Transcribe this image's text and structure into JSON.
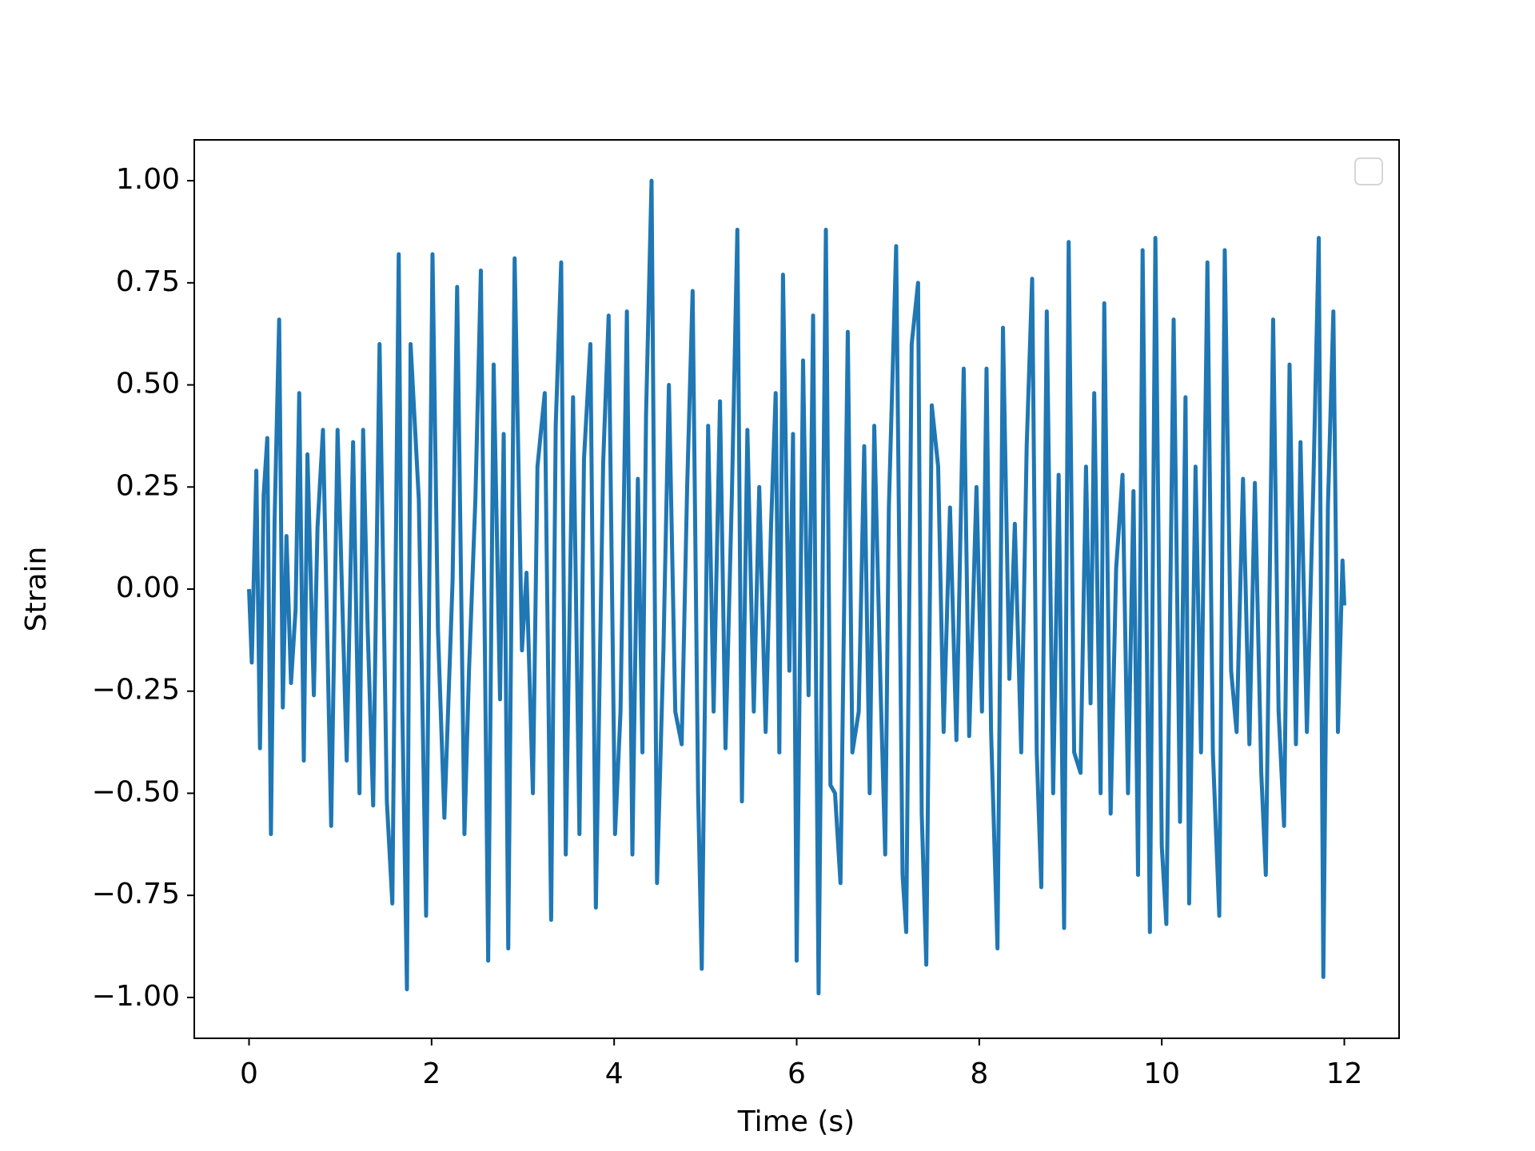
{
  "chart_data": {
    "type": "line",
    "xlabel": "Time (s)",
    "ylabel": "Strain",
    "xlim": [
      -0.6,
      12.6
    ],
    "ylim": [
      -1.1,
      1.1
    ],
    "xticks": [
      0,
      2,
      4,
      6,
      8,
      10,
      12
    ],
    "yticks": [
      {
        "value": -1.0,
        "label": "−1.00"
      },
      {
        "value": -0.75,
        "label": "−0.75"
      },
      {
        "value": -0.5,
        "label": "−0.50"
      },
      {
        "value": -0.25,
        "label": "−0.25"
      },
      {
        "value": 0.0,
        "label": "0.00"
      },
      {
        "value": 0.25,
        "label": "0.25"
      },
      {
        "value": 0.5,
        "label": "0.50"
      },
      {
        "value": 0.75,
        "label": "0.75"
      },
      {
        "value": 1.0,
        "label": "1.00"
      }
    ],
    "legend": "upper right",
    "color": "#1f77b4",
    "x": [
      0,
      0.03,
      0.08,
      0.12,
      0.16,
      0.2,
      0.24,
      0.28,
      0.33,
      0.37,
      0.41,
      0.46,
      0.51,
      0.55,
      0.6,
      0.64,
      0.71,
      0.75,
      0.81,
      0.9,
      0.97,
      1.07,
      1.14,
      1.21,
      1.25,
      1.3,
      1.36,
      1.43,
      1.51,
      1.57,
      1.64,
      1.68,
      1.73,
      1.77,
      1.86,
      1.94,
      2.01,
      2.07,
      2.14,
      2.23,
      2.28,
      2.36,
      2.41,
      2.48,
      2.54,
      2.62,
      2.68,
      2.75,
      2.79,
      2.84,
      2.91,
      2.99,
      3.04,
      3.11,
      3.16,
      3.24,
      3.31,
      3.36,
      3.42,
      3.47,
      3.55,
      3.62,
      3.67,
      3.74,
      3.8,
      3.88,
      3.94,
      4.01,
      4.07,
      4.14,
      4.2,
      4.26,
      4.31,
      4.35,
      4.41,
      4.47,
      4.54,
      4.6,
      4.67,
      4.74,
      4.8,
      4.86,
      4.92,
      4.96,
      5.03,
      5.09,
      5.16,
      5.22,
      5.29,
      5.35,
      5.4,
      5.46,
      5.53,
      5.59,
      5.66,
      5.72,
      5.77,
      5.81,
      5.85,
      5.92,
      5.96,
      6.0,
      6.07,
      6.13,
      6.18,
      6.24,
      6.32,
      6.37,
      6.42,
      6.48,
      6.56,
      6.61,
      6.68,
      6.74,
      6.8,
      6.85,
      6.92,
      6.97,
      7.01,
      7.09,
      7.16,
      7.2,
      7.26,
      7.33,
      7.37,
      7.42,
      7.48,
      7.55,
      7.61,
      7.68,
      7.75,
      7.83,
      7.89,
      7.97,
      8.03,
      8.08,
      8.13,
      8.2,
      8.26,
      8.33,
      8.39,
      8.46,
      8.52,
      8.58,
      8.63,
      8.68,
      8.74,
      8.81,
      8.87,
      8.93,
      8.98,
      9.04,
      9.11,
      9.17,
      9.22,
      9.26,
      9.33,
      9.37,
      9.44,
      9.5,
      9.57,
      9.63,
      9.69,
      9.74,
      9.79,
      9.87,
      9.93,
      10.0,
      10.05,
      10.13,
      10.2,
      10.26,
      10.3,
      10.37,
      10.43,
      10.5,
      10.56,
      10.63,
      10.69,
      10.76,
      10.82,
      10.89,
      10.96,
      11.02,
      11.09,
      11.14,
      11.22,
      11.28,
      11.34,
      11.4,
      11.47,
      11.52,
      11.59,
      11.66,
      11.72,
      11.77,
      11.82,
      11.88,
      11.93,
      11.98,
      12.0
    ],
    "values": [
      0,
      -0.18,
      0.29,
      -0.39,
      0.23,
      0.37,
      -0.6,
      0.17,
      0.66,
      -0.29,
      0.13,
      -0.23,
      -0.05,
      0.48,
      -0.42,
      0.33,
      -0.26,
      0.15,
      0.39,
      -0.58,
      0.39,
      -0.42,
      0.36,
      -0.5,
      0.39,
      -0.1,
      -0.53,
      0.6,
      -0.52,
      -0.77,
      0.82,
      -0.3,
      -0.98,
      0.6,
      0.22,
      -0.8,
      0.82,
      -0.1,
      -0.56,
      0.02,
      0.74,
      -0.6,
      -0.2,
      0.22,
      0.78,
      -0.91,
      0.55,
      -0.27,
      0.38,
      -0.88,
      0.81,
      -0.15,
      0.04,
      -0.5,
      0.3,
      0.48,
      -0.81,
      0.4,
      0.8,
      -0.65,
      0.47,
      -0.6,
      0.32,
      0.6,
      -0.78,
      0.31,
      0.67,
      -0.6,
      -0.3,
      0.68,
      -0.65,
      0.27,
      -0.4,
      0.43,
      1.0,
      -0.72,
      -0.15,
      0.5,
      -0.3,
      -0.38,
      0.25,
      0.73,
      -0.5,
      -0.93,
      0.4,
      -0.3,
      0.46,
      -0.39,
      0.23,
      0.88,
      -0.52,
      0.39,
      -0.3,
      0.25,
      -0.35,
      0.16,
      0.48,
      -0.4,
      0.77,
      -0.2,
      0.38,
      -0.91,
      0.56,
      -0.26,
      0.67,
      -0.99,
      0.88,
      -0.48,
      -0.5,
      -0.72,
      0.63,
      -0.4,
      -0.3,
      0.35,
      -0.5,
      0.4,
      -0.25,
      -0.65,
      0.2,
      0.84,
      -0.7,
      -0.84,
      0.6,
      0.75,
      -0.55,
      -0.92,
      0.45,
      0.3,
      -0.35,
      0.2,
      -0.37,
      0.54,
      -0.36,
      0.25,
      -0.3,
      0.54,
      -0.35,
      -0.88,
      0.64,
      -0.22,
      0.16,
      -0.4,
      0.35,
      0.76,
      -0.4,
      -0.73,
      0.68,
      -0.5,
      0.28,
      -0.83,
      0.85,
      -0.4,
      -0.45,
      0.3,
      -0.28,
      0.48,
      -0.5,
      0.7,
      -0.55,
      0.05,
      0.28,
      -0.5,
      0.24,
      -0.7,
      0.83,
      -0.84,
      0.86,
      -0.63,
      -0.82,
      0.66,
      -0.57,
      0.47,
      -0.77,
      0.3,
      -0.4,
      0.8,
      -0.4,
      -0.8,
      0.83,
      -0.2,
      -0.35,
      0.27,
      -0.38,
      0.26,
      -0.45,
      -0.7,
      0.66,
      -0.3,
      -0.58,
      0.55,
      -0.38,
      0.36,
      -0.35,
      0.25,
      0.86,
      -0.95,
      0.2,
      0.68,
      -0.35,
      0.07,
      -0.04
    ]
  }
}
